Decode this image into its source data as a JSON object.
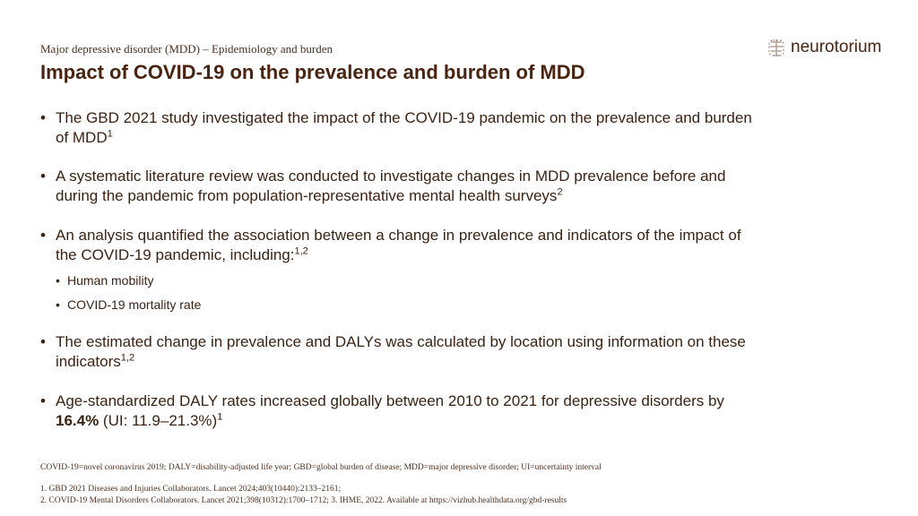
{
  "header": {
    "section": "Major depressive disorder (MDD) – Epidemiology and burden",
    "title": "Impact of COVID-19 on the prevalence and burden of MDD",
    "logo": "neurotorium"
  },
  "bullets": [
    {
      "text": "The GBD 2021 study investigated the impact of the COVID-19 pandemic on the prevalence and burden of MDD",
      "sup": "1"
    },
    {
      "text": "A systematic literature review was conducted to investigate changes in MDD prevalence before and during the pandemic from population-representative mental health surveys",
      "sup": "2"
    },
    {
      "text": "An analysis quantified the association between a change in prevalence and indicators of the impact of the COVID-19 pandemic, including:",
      "sup": "1,2",
      "sub": [
        "Human mobility",
        "COVID-19 mortality rate"
      ]
    },
    {
      "text": "The estimated change in prevalence and DALYs was calculated by location using information on these indicators",
      "sup": "1,2"
    },
    {
      "text": "Age-standardized DALY rates increased globally between 2010 to 2021 for depressive disorders by ",
      "bold": "16.4%",
      "after": " (UI: 11.9–21.3%)",
      "sup": "1"
    }
  ],
  "footnotes": {
    "abbrev": "COVID-19=novel coronavirus 2019; DALY=disability-adjusted life year; GBD=global burden of disease; MDD=major depressive disorder; UI=uncertainty interval",
    "ref1": "1. GBD 2021 Diseases and Injuries Collaborators. Lancet 2024;403(10440):2133–2161;",
    "ref2": "2. COVID-19 Mental Disorders Collaborators. Lancet 2021;398(10312):1700–1712; 3. IHME, 2022. Available at https://vizhub.healthdata.org/gbd-results"
  }
}
